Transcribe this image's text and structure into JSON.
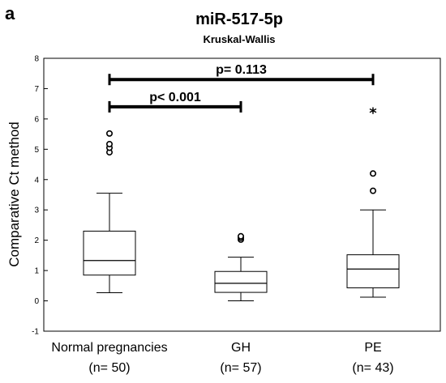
{
  "panel_label": "a",
  "chart_data": {
    "type": "boxplot",
    "title": "miR-517-5p",
    "subtitle": "Kruskal-Wallis",
    "ylabel": "Comparative Ct method",
    "xlabel": "",
    "ylim": [
      -1,
      8
    ],
    "yticks": [
      -1,
      0,
      1,
      2,
      3,
      4,
      5,
      6,
      7,
      8
    ],
    "grid": false,
    "categories": [
      {
        "name": "Normal pregnancies",
        "n_label": "(n= 50)"
      },
      {
        "name": "GH",
        "n_label": "(n= 57)"
      },
      {
        "name": "PE",
        "n_label": "(n= 43)"
      }
    ],
    "boxes": [
      {
        "whisker_low": 0.27,
        "q1": 0.85,
        "median": 1.33,
        "q3": 2.3,
        "whisker_high": 3.55,
        "outliers": [
          {
            "value": 4.9,
            "marker": "circle"
          },
          {
            "value": 5.05,
            "marker": "circle"
          },
          {
            "value": 5.17,
            "marker": "circle"
          },
          {
            "value": 5.52,
            "marker": "circle"
          }
        ]
      },
      {
        "whisker_low": 0.0,
        "q1": 0.28,
        "median": 0.58,
        "q3": 0.97,
        "whisker_high": 1.44,
        "outliers": [
          {
            "value": 2.02,
            "marker": "circle"
          },
          {
            "value": 2.08,
            "marker": "circle"
          },
          {
            "value": 2.13,
            "marker": "circle"
          }
        ]
      },
      {
        "whisker_low": 0.12,
        "q1": 0.43,
        "median": 1.05,
        "q3": 1.52,
        "whisker_high": 3.0,
        "outliers": [
          {
            "value": 3.63,
            "marker": "circle"
          },
          {
            "value": 4.2,
            "marker": "circle"
          },
          {
            "value": 6.22,
            "marker": "star"
          }
        ]
      }
    ],
    "annotations": [
      {
        "text": "p< 0.001",
        "from": 0,
        "to": 1,
        "y": 6.4
      },
      {
        "text": "p= 0.113",
        "from": 0,
        "to": 2,
        "y": 7.3
      }
    ]
  }
}
